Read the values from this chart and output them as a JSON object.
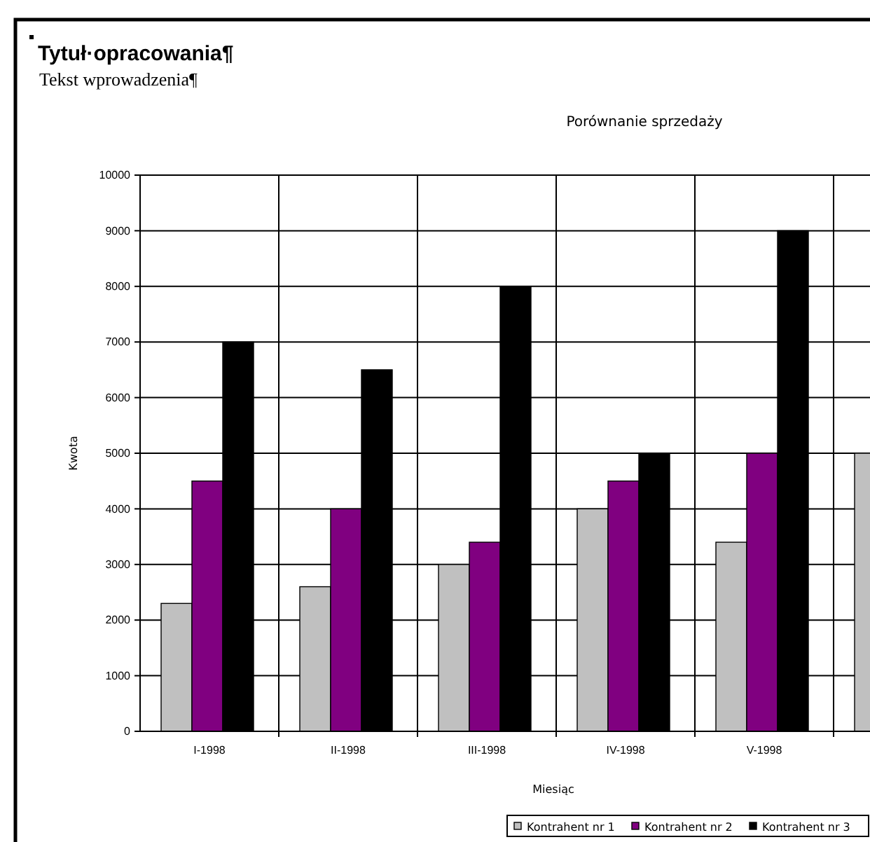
{
  "chart_data": {
    "type": "bar",
    "title": "Porównanie sprzedaży",
    "xlabel": "Miesiąc",
    "ylabel": "Kwota",
    "annotations": [
      "Tytuł·opracowania¶",
      "Tekst wprowadzenia¶"
    ],
    "categories": [
      "I-1998",
      "II-1998",
      "III-1998",
      "IV-1998",
      "V-1998",
      null
    ],
    "series": [
      {
        "name": "Kontrahent nr 1",
        "color": "#c0c0c0",
        "values": [
          2300,
          2600,
          3000,
          4000,
          3400,
          5000
        ]
      },
      {
        "name": "Kontrahent nr 2",
        "color": "#800080",
        "values": [
          4500,
          4000,
          3400,
          4500,
          5000,
          null
        ]
      },
      {
        "name": "Kontrahent nr 3",
        "color": "#000000",
        "values": [
          7000,
          6500,
          8000,
          5000,
          9000,
          null
        ]
      }
    ],
    "ylim": [
      0,
      10000
    ],
    "yticks": [
      0,
      1000,
      2000,
      3000,
      4000,
      5000,
      6000,
      7000,
      8000,
      9000,
      10000
    ],
    "grid": true,
    "legend": "bottom right"
  }
}
